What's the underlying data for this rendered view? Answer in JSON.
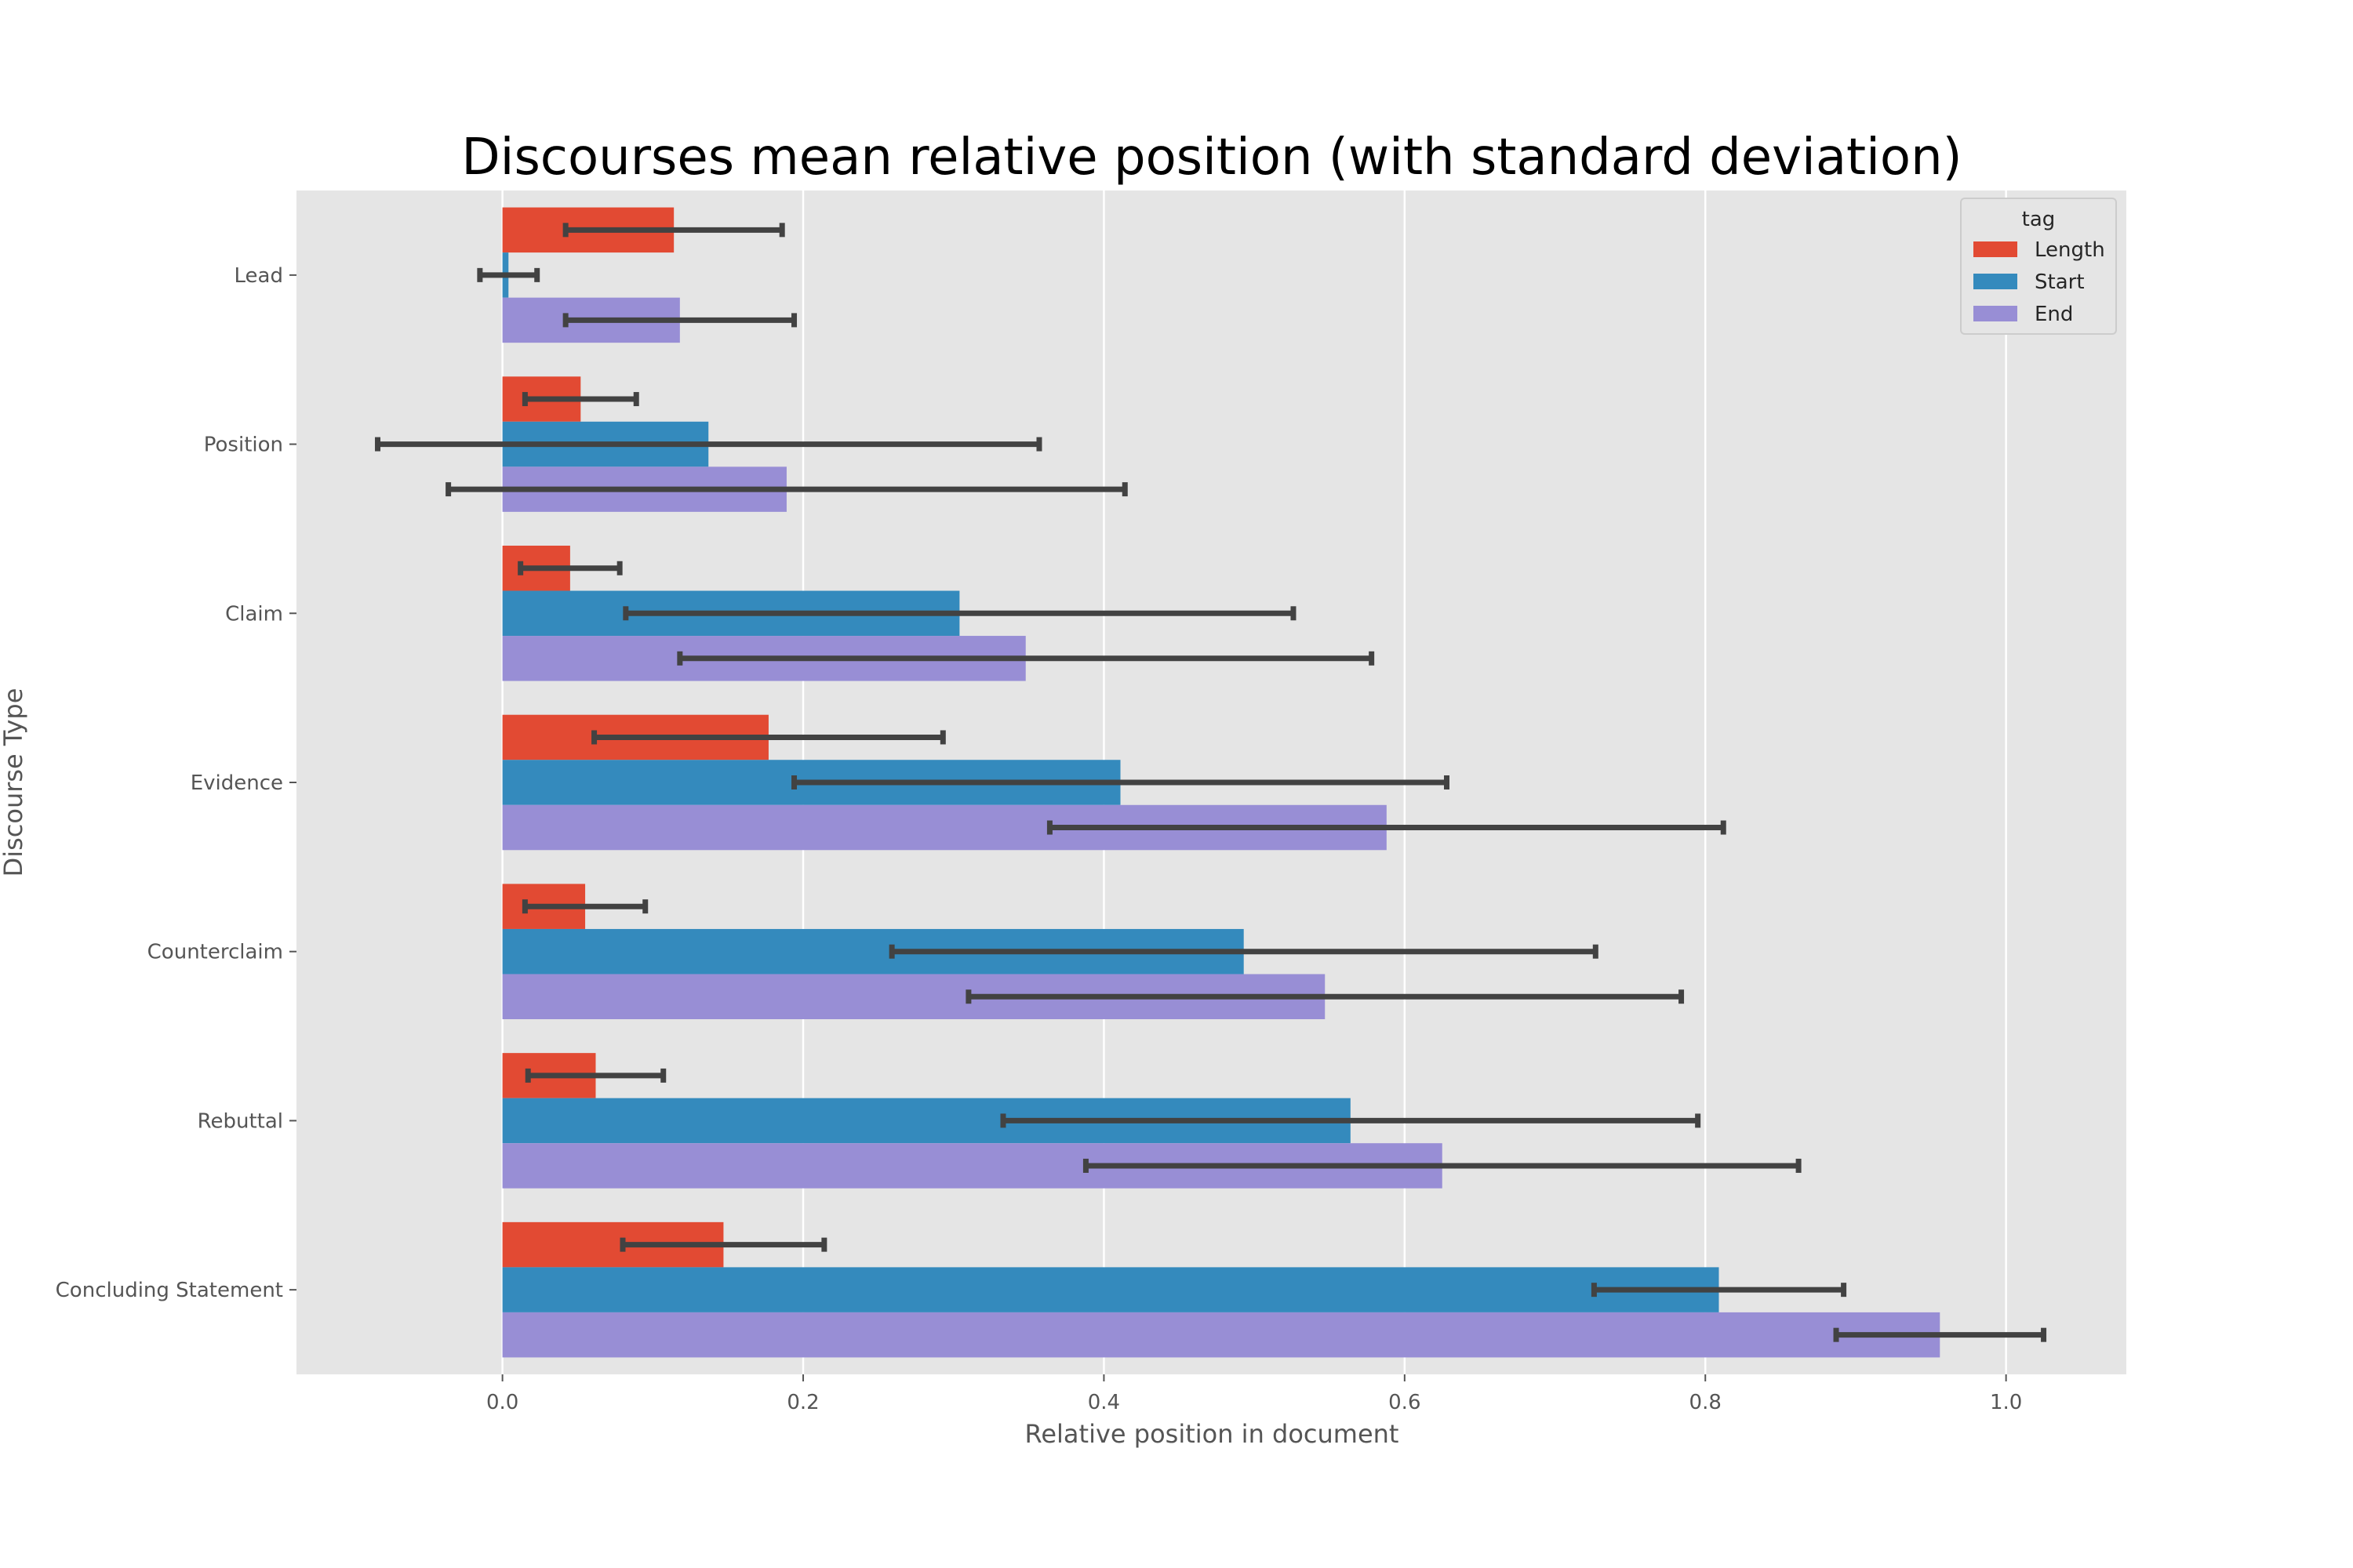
{
  "chart_data": {
    "type": "bar",
    "orientation": "horizontal",
    "title": "Discourses mean relative position (with standard deviation)",
    "xlabel": "Relative position in document",
    "ylabel": "Discourse Type",
    "xlim": [
      -0.137,
      1.08
    ],
    "x_ticks": [
      "0.0",
      "0.2",
      "0.4",
      "0.6",
      "0.8",
      "1.0"
    ],
    "grid": true,
    "legend": {
      "title": "tag",
      "placement": "top-right"
    },
    "categories": [
      "Lead",
      "Position",
      "Claim",
      "Evidence",
      "Counterclaim",
      "Rebuttal",
      "Concluding Statement"
    ],
    "series": [
      {
        "name": "Length",
        "color": "#E24A33",
        "values": [
          0.114,
          0.052,
          0.045,
          0.177,
          0.055,
          0.062,
          0.147
        ],
        "std": [
          0.072,
          0.037,
          0.033,
          0.116,
          0.04,
          0.045,
          0.067
        ]
      },
      {
        "name": "Start",
        "color": "#348ABD",
        "values": [
          0.004,
          0.137,
          0.304,
          0.411,
          0.493,
          0.564,
          0.809
        ],
        "std": [
          0.019,
          0.22,
          0.222,
          0.217,
          0.234,
          0.231,
          0.083
        ]
      },
      {
        "name": "End",
        "color": "#988ED5",
        "values": [
          0.118,
          0.189,
          0.348,
          0.588,
          0.547,
          0.625,
          0.956
        ],
        "std": [
          0.076,
          0.225,
          0.23,
          0.224,
          0.237,
          0.237,
          0.069
        ]
      }
    ]
  },
  "colors": {
    "plot_background": "#E5E5E5",
    "grid": "#FFFFFF",
    "error_bar": "#424242"
  }
}
